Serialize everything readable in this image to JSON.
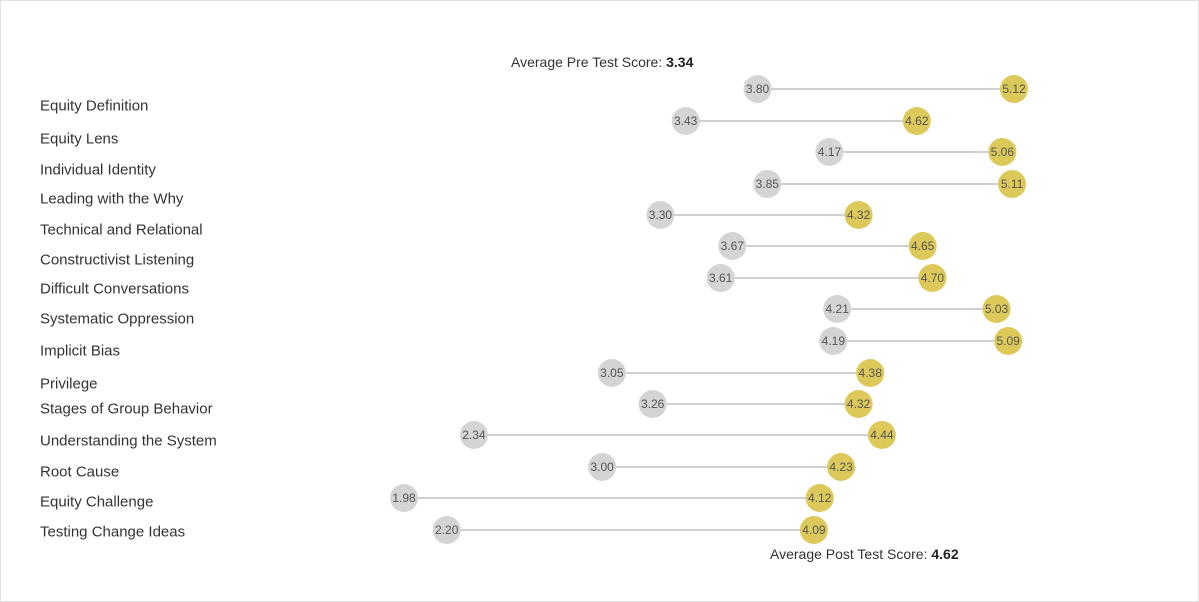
{
  "pre_summary": {
    "label": "Average Pre Test Score: ",
    "value": "3.34"
  },
  "post_summary": {
    "label": "Average Post Test Score: ",
    "value": "4.62"
  },
  "colors": {
    "pre": "#d4d4d4",
    "post": "#dcc95a",
    "line": "#d0d0d0",
    "border": "#e1e1e1"
  },
  "chart_data": {
    "type": "dumbbell",
    "categories": [
      "Equity Definition",
      "Equity Lens",
      "Individual Identity",
      "Leading with the Why",
      "Technical and Relational",
      "Constructivist Listening",
      "Difficult Conversations",
      "Systematic Oppression",
      "Implicit Bias",
      "Privilege",
      "Stages of Group Behavior",
      "Understanding the System",
      "Root Cause",
      "Equity Challenge",
      "Testing Change Ideas"
    ],
    "series": [
      {
        "values": [
          3.8,
          3.43,
          4.17,
          3.85,
          3.3,
          3.67,
          3.61,
          4.21,
          4.19,
          3.05,
          3.26,
          2.34,
          3.0,
          1.98,
          2.2
        ]
      },
      {
        "values": [
          5.12,
          4.62,
          5.06,
          5.11,
          4.32,
          4.65,
          4.7,
          5.03,
          5.09,
          4.38,
          4.32,
          4.44,
          4.23,
          4.12,
          4.09
        ]
      }
    ]
  }
}
